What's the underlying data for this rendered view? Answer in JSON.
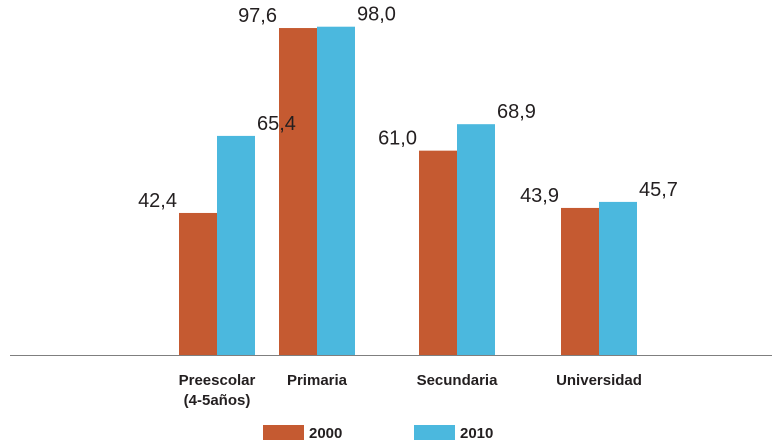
{
  "chart_data": {
    "type": "bar",
    "categories": [
      [
        "Preescolar",
        "(4-5años)"
      ],
      [
        "Primaria"
      ],
      [
        "Secundaria"
      ],
      [
        "Universidad"
      ]
    ],
    "series": [
      {
        "name": "2000",
        "values": [
          42.4,
          97.6,
          61.0,
          43.9
        ],
        "labels": [
          "42,4",
          "97,6",
          "61,0",
          "43,9"
        ],
        "color": "#c55a31"
      },
      {
        "name": "2010",
        "values": [
          65.4,
          98.0,
          68.9,
          45.7
        ],
        "labels": [
          "65,4",
          "98,0",
          "68,9",
          "45,7"
        ],
        "color": "#4bb8de"
      }
    ],
    "ylim": [
      0,
      100
    ],
    "grid": false,
    "legend_position": "bottom-center",
    "axis_color": "#7f7f7f"
  }
}
